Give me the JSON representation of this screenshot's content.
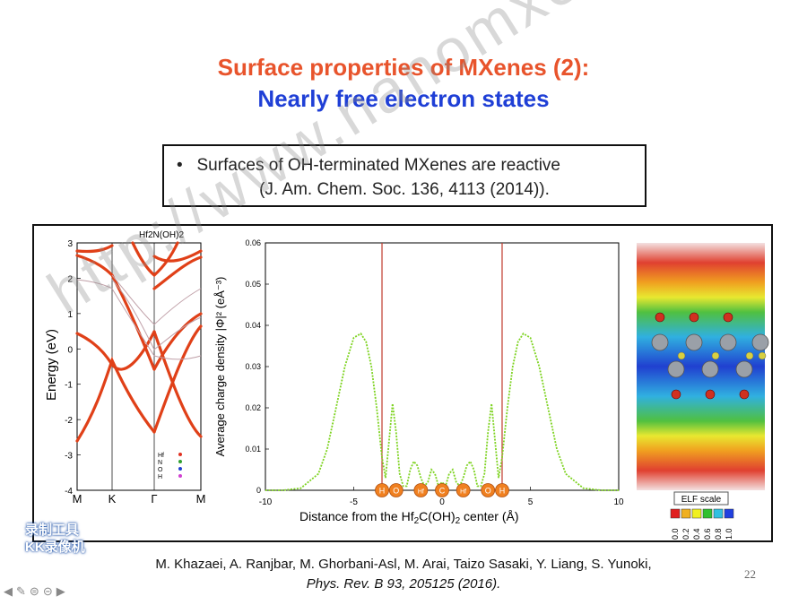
{
  "slide": {
    "title_line1": "Surface properties of MXenes (2):",
    "title_line2": "Nearly free electron states",
    "bullet": "Surfaces of OH-terminated MXenes are reactive",
    "bullet_ref": "(J. Am. Chem. Soc. 136, 4113 (2014)).",
    "authors": "M. Khazaei, A. Ranjbar, M. Ghorbani-Asl, M. Arai, Taizo Sasaki, Y. Liang, S. Yunoki,",
    "journal": "Phys. Rev. B 93, 205125 (2016).",
    "page_number": "22",
    "watermark": "http://www.nanomxenes.com",
    "stamp_line1": "录制工具",
    "stamp_line2": "KK录像机"
  },
  "band_panel": {
    "title": "Hf2N(OH)2",
    "ylabel": "Energy (eV)",
    "yticks": [
      "3",
      "2",
      "1",
      "0",
      "-1",
      "-2",
      "-3",
      "-4"
    ],
    "kpoints": [
      "M",
      "K",
      "Γ",
      "M"
    ],
    "legend": [
      "Hf",
      "N",
      "O",
      "H"
    ],
    "colors": {
      "Hf": "#e03020",
      "N": "#30a030",
      "O": "#2040d0",
      "H": "#d040d0"
    }
  },
  "chart_data": {
    "type": "line",
    "xlabel_prefix": "Distance from the Hf",
    "xlabel_sub": "2",
    "xlabel_mid": "C(OH)",
    "xlabel_sub2": "2",
    "xlabel_suffix": " center (Å)",
    "ylabel": "Average charge density |Φ|² (eÅ⁻³)",
    "xlim": [
      -10,
      10
    ],
    "ylim": [
      0,
      0.06
    ],
    "xticks": [
      "-10",
      "-5",
      "0",
      "5",
      "10"
    ],
    "yticks": [
      "0",
      "0.01",
      "0.02",
      "0.03",
      "0.04",
      "0.05",
      "0.06"
    ],
    "series": [
      {
        "color": "#7ed321",
        "x": [
          -10,
          -9,
          -8,
          -7,
          -6.5,
          -6,
          -5.5,
          -5,
          -4.6,
          -4.3,
          -4,
          -3.7,
          -3.4,
          -3.2,
          -3,
          -2.8,
          -2.6,
          -2.4,
          -2.2,
          -2,
          -1.8,
          -1.6,
          -1.4,
          -1.2,
          -1,
          -0.8,
          -0.6,
          -0.4,
          -0.2,
          0,
          0.2,
          0.4,
          0.6,
          0.8,
          1,
          1.2,
          1.4,
          1.6,
          1.8,
          2,
          2.2,
          2.4,
          2.6,
          2.8,
          3,
          3.2,
          3.4,
          3.7,
          4,
          4.3,
          4.6,
          5,
          5.5,
          6,
          6.5,
          7,
          8,
          9,
          10
        ],
        "y": [
          0,
          0,
          0.0005,
          0.004,
          0.01,
          0.02,
          0.03,
          0.037,
          0.038,
          0.036,
          0.03,
          0.02,
          0.008,
          0.003,
          0.012,
          0.021,
          0.014,
          0.004,
          0.001,
          0.001,
          0.005,
          0.007,
          0.006,
          0.003,
          0.001,
          0.002,
          0.005,
          0.004,
          0.001,
          0.002,
          0.001,
          0.004,
          0.005,
          0.002,
          0.001,
          0.003,
          0.006,
          0.007,
          0.005,
          0.001,
          0.001,
          0.004,
          0.014,
          0.021,
          0.012,
          0.003,
          0.008,
          0.02,
          0.03,
          0.036,
          0.038,
          0.037,
          0.03,
          0.02,
          0.01,
          0.004,
          0.0005,
          0,
          0
        ]
      }
    ],
    "vlines": [
      -3.4,
      3.4
    ],
    "atoms": [
      {
        "x": -3.4,
        "label": "H"
      },
      {
        "x": -2.6,
        "label": "O"
      },
      {
        "x": -1.2,
        "label": "Hf"
      },
      {
        "x": 0,
        "label": "C"
      },
      {
        "x": 1.2,
        "label": "Hf"
      },
      {
        "x": 2.6,
        "label": "O"
      },
      {
        "x": 3.4,
        "label": "H"
      }
    ]
  },
  "elf_panel": {
    "scale_title": "ELF scale",
    "scale_values": [
      "0.0",
      "0.2",
      "0.4",
      "0.6",
      "0.8",
      "1.0"
    ],
    "scale_colors": [
      "#e02020",
      "#f0b020",
      "#f0f020",
      "#30c030",
      "#30c0e0",
      "#2040e0"
    ]
  }
}
